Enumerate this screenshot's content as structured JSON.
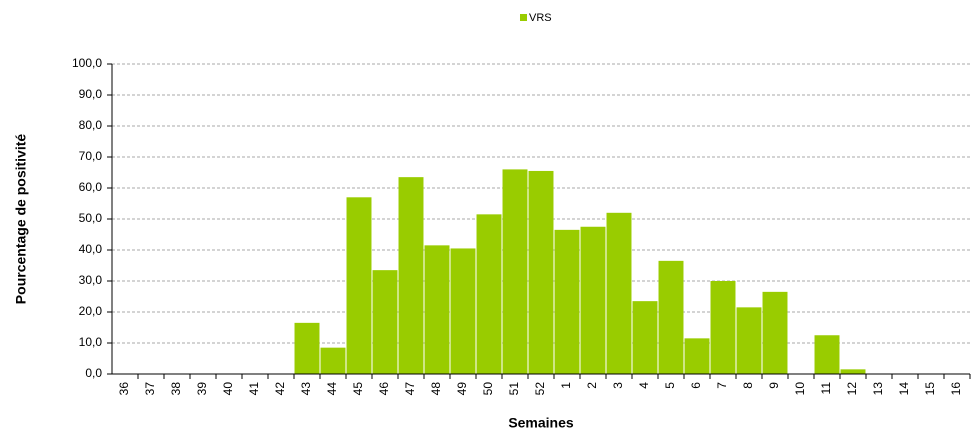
{
  "chart_data": {
    "type": "bar",
    "x_label": "Semaines",
    "y_label": "Pourcentage de positivité",
    "categories": [
      "36",
      "37",
      "38",
      "39",
      "40",
      "41",
      "42",
      "43",
      "44",
      "45",
      "46",
      "47",
      "48",
      "49",
      "50",
      "51",
      "52",
      "1",
      "2",
      "3",
      "4",
      "5",
      "6",
      "7",
      "8",
      "9",
      "10",
      "11",
      "12",
      "13",
      "14",
      "15",
      "16"
    ],
    "series": [
      {
        "name": "VRS",
        "color": "#99cc00",
        "values": [
          0,
          0,
          0,
          0,
          0,
          0,
          0,
          16.5,
          8.5,
          57,
          33.5,
          63.5,
          41.5,
          40.5,
          51.5,
          66,
          65.5,
          46.5,
          47.5,
          52,
          23.5,
          36.5,
          11.5,
          30,
          21.5,
          26.5,
          0,
          12.5,
          1.5,
          0,
          0,
          0,
          0
        ]
      }
    ],
    "ylim": [
      0,
      100
    ],
    "yticks": [
      {
        "value": 0,
        "label": "0,0"
      },
      {
        "value": 10,
        "label": "10,0"
      },
      {
        "value": 20,
        "label": "20,0"
      },
      {
        "value": 30,
        "label": "30,0"
      },
      {
        "value": 40,
        "label": "40,0"
      },
      {
        "value": 50,
        "label": "50,0"
      },
      {
        "value": 60,
        "label": "60,0"
      },
      {
        "value": 70,
        "label": "70,0"
      },
      {
        "value": 80,
        "label": "80,0"
      },
      {
        "value": 90,
        "label": "90,0"
      },
      {
        "value": 100,
        "label": "100,0"
      }
    ],
    "grid": true,
    "legend": "top"
  }
}
